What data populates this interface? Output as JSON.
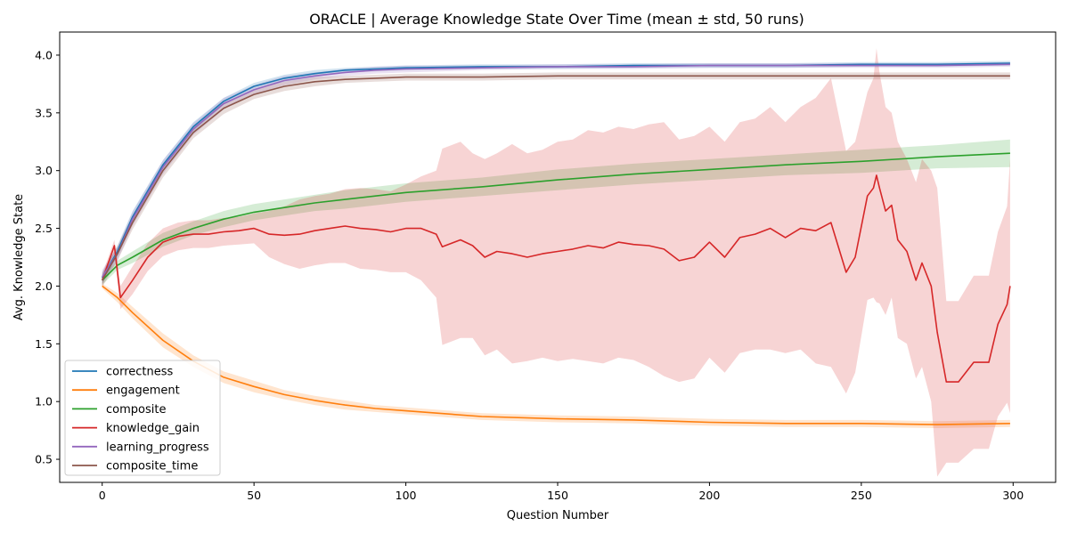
{
  "chart_data": {
    "type": "line",
    "title": "ORACLE | Average Knowledge State Over Time (mean ± std, 50 runs)",
    "xlabel": "Question Number",
    "ylabel": "Avg. Knowledge State",
    "xlim": [
      -14,
      314
    ],
    "ylim": [
      0.3,
      4.2
    ],
    "xticks": [
      0,
      50,
      100,
      150,
      200,
      250,
      300
    ],
    "yticks": [
      0.5,
      1.0,
      1.5,
      2.0,
      2.5,
      3.0,
      3.5,
      4.0
    ],
    "xtick_labels": [
      "0",
      "50",
      "100",
      "150",
      "200",
      "250",
      "300"
    ],
    "ytick_labels": [
      "0.5",
      "1.0",
      "1.5",
      "2.0",
      "2.5",
      "3.0",
      "3.5",
      "4.0"
    ],
    "grid": false,
    "legend_position": "bottom-left",
    "series": [
      {
        "name": "correctness",
        "color": "#1f77b4",
        "x": [
          0,
          5,
          10,
          20,
          30,
          40,
          50,
          60,
          70,
          80,
          90,
          100,
          125,
          150,
          175,
          200,
          225,
          250,
          275,
          299
        ],
        "y": [
          2.07,
          2.3,
          2.6,
          3.05,
          3.38,
          3.6,
          3.73,
          3.8,
          3.84,
          3.87,
          3.88,
          3.89,
          3.9,
          3.9,
          3.91,
          3.91,
          3.91,
          3.92,
          3.92,
          3.93
        ],
        "std": [
          0.05,
          0.05,
          0.05,
          0.04,
          0.04,
          0.03,
          0.03,
          0.03,
          0.03,
          0.02,
          0.02,
          0.02,
          0.02,
          0.02,
          0.02,
          0.02,
          0.02,
          0.02,
          0.02,
          0.02
        ]
      },
      {
        "name": "engagement",
        "color": "#ff7f0e",
        "x": [
          0,
          5,
          10,
          20,
          30,
          40,
          50,
          60,
          70,
          80,
          90,
          100,
          125,
          150,
          175,
          200,
          225,
          250,
          275,
          299
        ],
        "y": [
          2.0,
          1.9,
          1.77,
          1.53,
          1.35,
          1.21,
          1.13,
          1.06,
          1.01,
          0.97,
          0.94,
          0.92,
          0.87,
          0.85,
          0.84,
          0.82,
          0.81,
          0.81,
          0.8,
          0.81
        ],
        "std": [
          0.02,
          0.04,
          0.05,
          0.06,
          0.05,
          0.05,
          0.05,
          0.04,
          0.04,
          0.04,
          0.03,
          0.03,
          0.03,
          0.03,
          0.03,
          0.03,
          0.03,
          0.03,
          0.03,
          0.03
        ]
      },
      {
        "name": "composite",
        "color": "#2ca02c",
        "x": [
          0,
          5,
          10,
          20,
          30,
          40,
          50,
          60,
          70,
          80,
          90,
          100,
          125,
          150,
          175,
          200,
          225,
          250,
          275,
          299
        ],
        "y": [
          2.05,
          2.18,
          2.25,
          2.4,
          2.5,
          2.58,
          2.64,
          2.68,
          2.72,
          2.75,
          2.78,
          2.81,
          2.86,
          2.92,
          2.97,
          3.01,
          3.05,
          3.08,
          3.12,
          3.15
        ],
        "std": [
          0.04,
          0.04,
          0.05,
          0.06,
          0.06,
          0.07,
          0.07,
          0.07,
          0.07,
          0.08,
          0.08,
          0.08,
          0.08,
          0.09,
          0.09,
          0.09,
          0.09,
          0.1,
          0.1,
          0.12
        ]
      },
      {
        "name": "knowledge_gain",
        "color": "#d62728",
        "x": [
          0,
          4,
          6,
          10,
          15,
          20,
          25,
          30,
          35,
          40,
          45,
          50,
          55,
          60,
          65,
          70,
          75,
          80,
          85,
          90,
          95,
          100,
          105,
          110,
          112,
          118,
          122,
          126,
          130,
          135,
          140,
          145,
          150,
          155,
          160,
          165,
          170,
          175,
          180,
          185,
          190,
          195,
          200,
          205,
          210,
          215,
          220,
          225,
          230,
          235,
          240,
          245,
          248,
          252,
          254,
          255,
          256,
          258,
          260,
          262,
          265,
          268,
          270,
          273,
          275,
          278,
          282,
          287,
          292,
          295,
          298,
          299
        ],
        "y": [
          2.05,
          2.35,
          1.9,
          2.05,
          2.25,
          2.38,
          2.43,
          2.45,
          2.45,
          2.47,
          2.48,
          2.5,
          2.45,
          2.44,
          2.45,
          2.48,
          2.5,
          2.52,
          2.5,
          2.49,
          2.47,
          2.5,
          2.5,
          2.45,
          2.34,
          2.4,
          2.35,
          2.25,
          2.3,
          2.28,
          2.25,
          2.28,
          2.3,
          2.32,
          2.35,
          2.33,
          2.38,
          2.36,
          2.35,
          2.32,
          2.22,
          2.25,
          2.38,
          2.25,
          2.42,
          2.45,
          2.5,
          2.42,
          2.5,
          2.48,
          2.55,
          2.12,
          2.25,
          2.78,
          2.85,
          2.96,
          2.85,
          2.65,
          2.7,
          2.4,
          2.3,
          2.05,
          2.2,
          2.0,
          1.6,
          1.17,
          1.17,
          1.34,
          1.34,
          1.67,
          1.84,
          2.0
        ],
        "std": [
          0.05,
          0.05,
          0.1,
          0.12,
          0.12,
          0.12,
          0.12,
          0.12,
          0.12,
          0.12,
          0.12,
          0.13,
          0.2,
          0.25,
          0.3,
          0.3,
          0.3,
          0.32,
          0.35,
          0.35,
          0.35,
          0.38,
          0.45,
          0.55,
          0.85,
          0.85,
          0.8,
          0.85,
          0.85,
          0.95,
          0.9,
          0.9,
          0.95,
          0.95,
          1.0,
          1.0,
          1.0,
          1.0,
          1.05,
          1.1,
          1.05,
          1.05,
          1.0,
          1.0,
          1.0,
          1.0,
          1.05,
          1.0,
          1.05,
          1.15,
          1.25,
          1.05,
          1.0,
          0.9,
          0.95,
          1.1,
          1.0,
          0.9,
          0.8,
          0.85,
          0.8,
          0.85,
          0.9,
          1.0,
          1.25,
          0.7,
          0.7,
          0.75,
          0.75,
          0.8,
          0.85,
          1.1
        ]
      },
      {
        "name": "learning_progress",
        "color": "#9467bd",
        "x": [
          0,
          5,
          10,
          20,
          30,
          40,
          50,
          60,
          70,
          80,
          90,
          100,
          125,
          150,
          175,
          200,
          225,
          250,
          275,
          299
        ],
        "y": [
          2.08,
          2.28,
          2.58,
          3.03,
          3.36,
          3.58,
          3.7,
          3.78,
          3.82,
          3.85,
          3.87,
          3.88,
          3.89,
          3.9,
          3.9,
          3.91,
          3.91,
          3.91,
          3.91,
          3.92
        ],
        "std": [
          0.06,
          0.06,
          0.06,
          0.06,
          0.05,
          0.05,
          0.04,
          0.04,
          0.03,
          0.03,
          0.03,
          0.03,
          0.02,
          0.02,
          0.02,
          0.02,
          0.02,
          0.02,
          0.02,
          0.02
        ]
      },
      {
        "name": "composite_time",
        "color": "#8c564b",
        "x": [
          0,
          5,
          10,
          20,
          30,
          40,
          50,
          60,
          70,
          80,
          90,
          100,
          125,
          150,
          175,
          200,
          225,
          250,
          275,
          299
        ],
        "y": [
          2.05,
          2.28,
          2.55,
          3.0,
          3.33,
          3.54,
          3.66,
          3.73,
          3.77,
          3.79,
          3.8,
          3.81,
          3.81,
          3.82,
          3.82,
          3.82,
          3.82,
          3.82,
          3.82,
          3.82
        ],
        "std": [
          0.06,
          0.06,
          0.06,
          0.06,
          0.05,
          0.05,
          0.04,
          0.04,
          0.04,
          0.03,
          0.03,
          0.03,
          0.03,
          0.03,
          0.03,
          0.03,
          0.03,
          0.03,
          0.03,
          0.03
        ]
      }
    ]
  }
}
